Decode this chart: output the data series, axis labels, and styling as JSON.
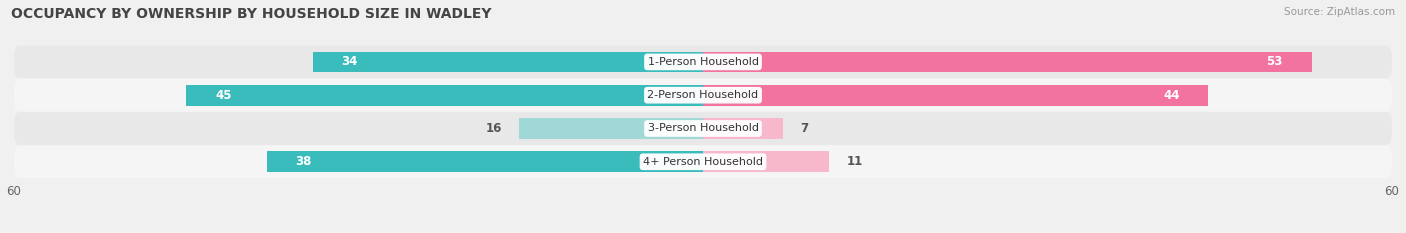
{
  "title": "OCCUPANCY BY OWNERSHIP BY HOUSEHOLD SIZE IN WADLEY",
  "source": "Source: ZipAtlas.com",
  "categories": [
    "1-Person Household",
    "2-Person Household",
    "3-Person Household",
    "4+ Person Household"
  ],
  "owner_values": [
    34,
    45,
    16,
    38
  ],
  "renter_values": [
    53,
    44,
    7,
    11
  ],
  "owner_color_dark": "#3bbcbc",
  "owner_color_light": "#a0d8d8",
  "renter_color_dark": "#f272a0",
  "renter_color_light": "#f8b8cc",
  "axis_max": 60,
  "bg_color": "#f0f0f0",
  "row_colors": [
    "#e8e8e8",
    "#f5f5f5"
  ],
  "title_fontsize": 10,
  "source_fontsize": 7.5,
  "bar_label_fontsize": 8.5,
  "category_fontsize": 8,
  "axis_label_fontsize": 8.5,
  "dark_threshold": 25
}
